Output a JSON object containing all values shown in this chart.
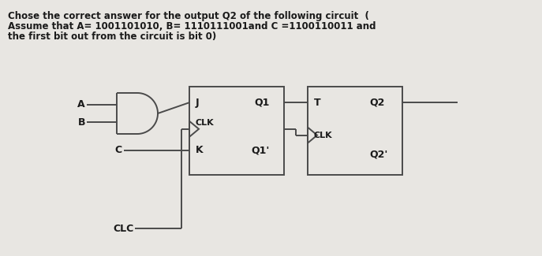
{
  "title_line1": "Chose the correct answer for the output Q2 of the following circuit  (",
  "title_line2": "Assume that A= 1001101010, B= 1110111001and C =1100110011 and",
  "title_line3": "the first bit out from the circuit is bit 0)",
  "bg_color": "#e8e6e2",
  "text_color": "#1a1a1a",
  "line_color": "#4a4a4a",
  "lw": 1.4,
  "fig_w": 6.87,
  "fig_h": 3.25,
  "dpi": 100
}
